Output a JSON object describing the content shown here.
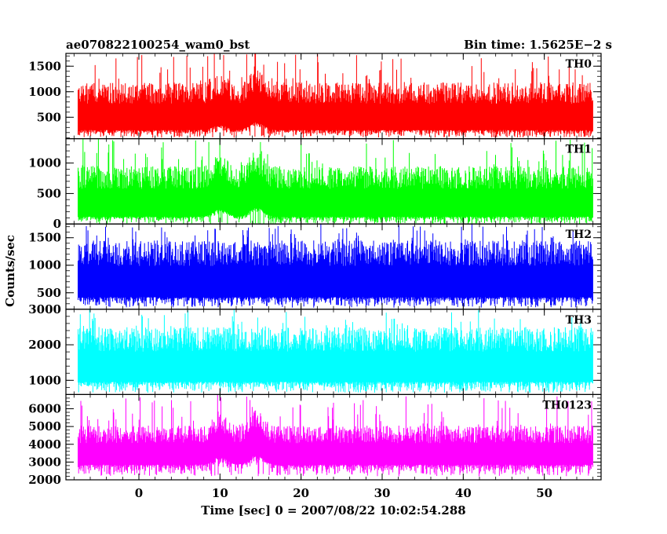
{
  "header": {
    "title": "ae070822100254_wam0_bst",
    "bin_time": "Bin time: 1.5625E−2 s"
  },
  "axes": {
    "xlabel": "Time [sec] 0 = 2007/08/22 10:02:54.288",
    "ylabel": "Counts/sec"
  },
  "chart_data": [
    {
      "type": "line",
      "name": "TH0",
      "color": "#ff0000",
      "ylim": [
        80,
        1750
      ],
      "yticks": [
        500,
        1000,
        1500
      ],
      "band": {
        "low": 250,
        "high": 1180,
        "spike_max": 1740,
        "dip_min": 100
      },
      "bumps": [
        {
          "t": 10,
          "amp": 150
        },
        {
          "t": 14.5,
          "amp": 250
        }
      ]
    },
    {
      "type": "line",
      "name": "TH1",
      "color": "#00ff00",
      "ylim": [
        0,
        1400
      ],
      "yticks": [
        0,
        500,
        1000
      ],
      "band": {
        "low": 120,
        "high": 950,
        "spike_max": 1400,
        "dip_min": 0
      },
      "bumps": [
        {
          "t": 10,
          "amp": 200
        },
        {
          "t": 14.5,
          "amp": 250
        }
      ]
    },
    {
      "type": "line",
      "name": "TH2",
      "color": "#0000ff",
      "ylim": [
        200,
        1750
      ],
      "yticks": [
        500,
        1000,
        1500
      ],
      "band": {
        "low": 420,
        "high": 1450,
        "spike_max": 1750,
        "dip_min": 230
      },
      "bumps": []
    },
    {
      "type": "line",
      "name": "TH3",
      "color": "#00ffff",
      "ylim": [
        600,
        3000
      ],
      "yticks": [
        1000,
        2000,
        3000
      ],
      "band": {
        "low": 960,
        "high": 2500,
        "spike_max": 3000,
        "dip_min": 650
      },
      "bumps": []
    },
    {
      "type": "line",
      "name": "TH0123",
      "color": "#ff00ff",
      "ylim": [
        2000,
        6800
      ],
      "yticks": [
        2000,
        3000,
        4000,
        5000,
        6000
      ],
      "band": {
        "low": 2850,
        "high": 5050,
        "spike_max": 6700,
        "dip_min": 2200
      },
      "bumps": [
        {
          "t": 10,
          "amp": 700
        },
        {
          "t": 14.5,
          "amp": 900
        }
      ]
    }
  ],
  "x_axis": {
    "xlim": [
      -9,
      57
    ],
    "data_range": [
      -7.5,
      56
    ],
    "ticks": [
      0,
      10,
      20,
      30,
      40,
      50
    ],
    "minor_step": 2
  }
}
